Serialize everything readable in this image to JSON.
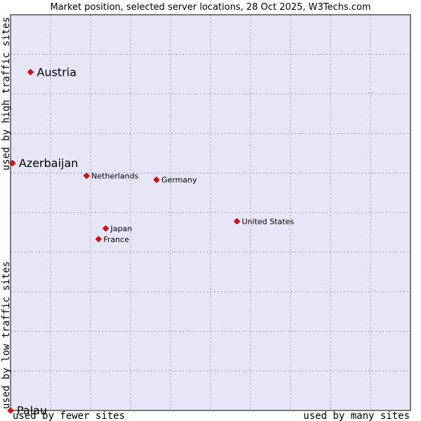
{
  "chart_data": {
    "type": "scatter",
    "title": "Market position, selected server locations, 28 Oct 2025, W3Techs.com",
    "xlabel_left": "used by fewer sites",
    "xlabel_right": "used by many sites",
    "ylabel_top": "used by high traffic sites",
    "ylabel_bottom": "used by low traffic sites",
    "xlim": [
      0,
      100
    ],
    "ylim": [
      0,
      100
    ],
    "grid": true,
    "colors": {
      "plot_bg": "#e6e6f8",
      "point": "#ff0000",
      "point_stroke": "#990000",
      "grid": "#9a9ab8",
      "frame": "#000000"
    },
    "points": [
      {
        "name": "Austria",
        "x": 5.0,
        "y": 85.5,
        "emphasis": true
      },
      {
        "name": "Azerbaijan",
        "x": 0.5,
        "y": 62.5,
        "emphasis": true
      },
      {
        "name": "Netherlands",
        "x": 19.0,
        "y": 59.3,
        "emphasis": false
      },
      {
        "name": "Germany",
        "x": 36.5,
        "y": 58.3,
        "emphasis": false
      },
      {
        "name": "United States",
        "x": 56.6,
        "y": 47.8,
        "emphasis": false
      },
      {
        "name": "Japan",
        "x": 23.8,
        "y": 46.0,
        "emphasis": false
      },
      {
        "name": "France",
        "x": 22.0,
        "y": 43.3,
        "emphasis": false
      },
      {
        "name": "Palau",
        "x": 0.0,
        "y": 0.0,
        "emphasis": true
      }
    ]
  }
}
